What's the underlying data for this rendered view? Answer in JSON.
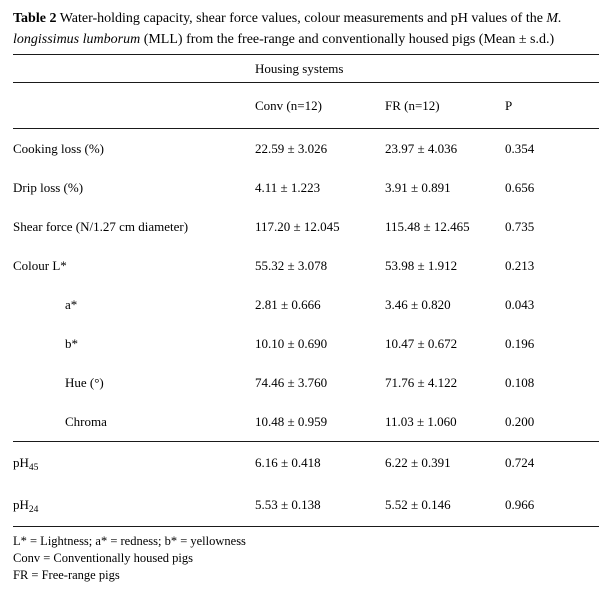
{
  "caption": {
    "label": "Table 2",
    "text_before_italic": " Water-holding capacity, shear force values, colour measurements and pH values of the ",
    "italic": "M. longissimus lumborum",
    "text_after_italic": " (MLL) from the free-range and conventionally housed pigs (Mean ± s.d.)"
  },
  "table": {
    "group_header": "Housing systems",
    "columns": [
      "Conv (n=12)",
      "FR (n=12)",
      "P"
    ],
    "rows": [
      {
        "label": "Cooking loss (%)",
        "conv": "22.59 ± 3.026",
        "fr": "23.97 ± 4.036",
        "p": "0.354"
      },
      {
        "label": "Drip loss (%)",
        "conv": "4.11 ± 1.223",
        "fr": "3.91 ± 0.891",
        "p": "0.656"
      },
      {
        "label": "Shear force (N/1.27 cm diameter)",
        "conv": "117.20 ± 12.045",
        "fr": "115.48 ± 12.465",
        "p": "0.735"
      },
      {
        "label": "Colour L*",
        "conv": "55.32 ± 3.078",
        "fr": "53.98 ± 1.912",
        "p": "0.213"
      },
      {
        "label": "a*",
        "conv": "2.81 ± 0.666",
        "fr": "3.46 ± 0.820",
        "p": "0.043"
      },
      {
        "label": "b*",
        "conv": "10.10 ± 0.690",
        "fr": "10.47 ± 0.672",
        "p": "0.196"
      },
      {
        "label": "Hue (°)",
        "conv": "74.46 ± 3.760",
        "fr": "71.76 ± 4.122",
        "p": "0.108"
      },
      {
        "label": "Chroma",
        "conv": "10.48 ± 0.959",
        "fr": "11.03 ± 1.060",
        "p": "0.200"
      },
      {
        "label": "pH",
        "sub": "45",
        "conv": "6.16 ± 0.418",
        "fr": "6.22 ± 0.391",
        "p": "0.724"
      },
      {
        "label": "pH",
        "sub": "24",
        "conv": "5.53 ± 0.138",
        "fr": "5.52 ± 0.146",
        "p": "0.966"
      }
    ]
  },
  "footnotes": [
    "L* = Lightness; a* = redness; b* = yellowness",
    "Conv = Conventionally housed pigs",
    "FR = Free-range pigs"
  ]
}
